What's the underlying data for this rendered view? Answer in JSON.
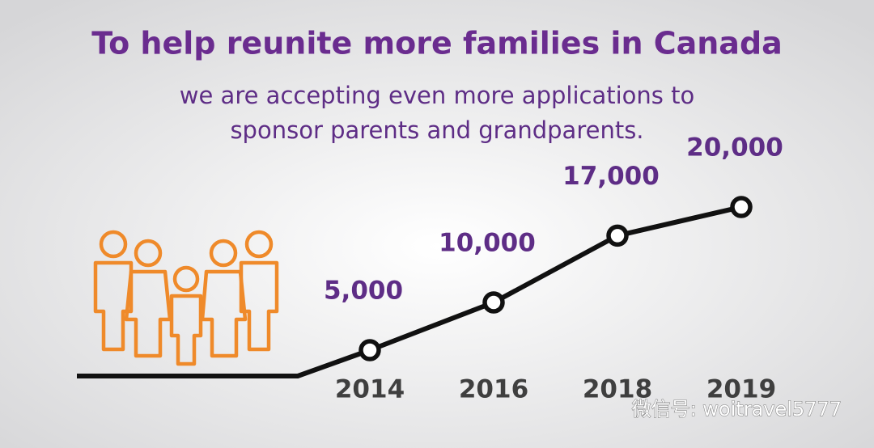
{
  "chart_data": {
    "type": "line",
    "title": "To help reunite more families in Canada",
    "subtitle": [
      "we are accepting even more applications to",
      "sponsor parents and grandparents."
    ],
    "categories": [
      "2014",
      "2016",
      "2018",
      "2019"
    ],
    "values": [
      5000,
      10000,
      17000,
      20000
    ],
    "value_labels": [
      "5,000",
      "10,000",
      "17,000",
      "20,000"
    ],
    "color": "#111111",
    "watermark": "微信号: woitravel5777"
  }
}
